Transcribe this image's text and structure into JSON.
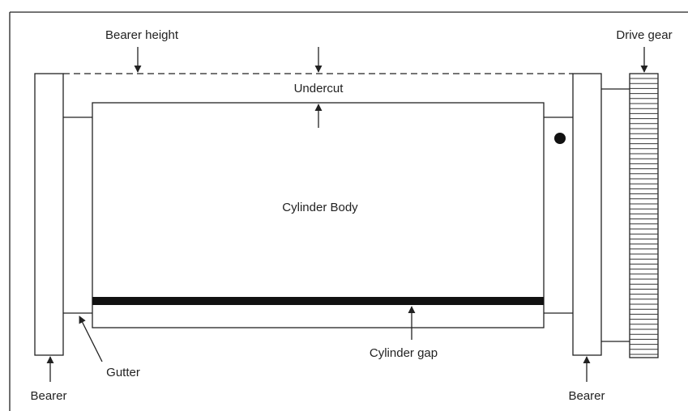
{
  "labels": {
    "bearer_height": "Bearer height",
    "undercut": "Undercut",
    "drive_gear": "Drive gear",
    "cylinder_body": "Cylinder Body",
    "cylinder_gap": "Cylinder gap",
    "gutter": "Gutter",
    "bearer_left": "Bearer",
    "bearer_right": "Bearer"
  }
}
